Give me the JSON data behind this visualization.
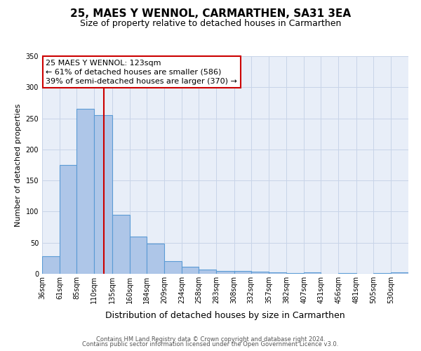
{
  "title": "25, MAES Y WENNOL, CARMARTHEN, SA31 3EA",
  "subtitle": "Size of property relative to detached houses in Carmarthen",
  "xlabel": "Distribution of detached houses by size in Carmarthen",
  "ylabel": "Number of detached properties",
  "bar_labels": [
    "36sqm",
    "61sqm",
    "85sqm",
    "110sqm",
    "135sqm",
    "160sqm",
    "184sqm",
    "209sqm",
    "234sqm",
    "258sqm",
    "283sqm",
    "308sqm",
    "332sqm",
    "357sqm",
    "382sqm",
    "407sqm",
    "431sqm",
    "456sqm",
    "481sqm",
    "505sqm",
    "530sqm"
  ],
  "bar_values": [
    28,
    175,
    265,
    255,
    95,
    60,
    48,
    20,
    11,
    7,
    4,
    5,
    3,
    2,
    1,
    2,
    0,
    1,
    0,
    1,
    2
  ],
  "bar_color": "#aec6e8",
  "bar_edge_color": "#5b9bd5",
  "property_line_x": 123,
  "property_line_label": "25 MAES Y WENNOL: 123sqm",
  "annotation_line1": "← 61% of detached houses are smaller (586)",
  "annotation_line2": "39% of semi-detached houses are larger (370) →",
  "annotation_box_color": "#ffffff",
  "annotation_box_edge_color": "#cc0000",
  "vline_color": "#cc0000",
  "ylim": [
    0,
    350
  ],
  "yticks": [
    0,
    50,
    100,
    150,
    200,
    250,
    300,
    350
  ],
  "footer_line1": "Contains HM Land Registry data © Crown copyright and database right 2024.",
  "footer_line2": "Contains public sector information licensed under the Open Government Licence v3.0.",
  "bin_edges": [
    36,
    61,
    85,
    110,
    135,
    160,
    184,
    209,
    234,
    258,
    283,
    308,
    332,
    357,
    382,
    407,
    431,
    456,
    481,
    505,
    530,
    555
  ],
  "bg_color": "#e8eef8",
  "grid_color": "#c8d4e8",
  "title_fontsize": 11,
  "subtitle_fontsize": 9,
  "ylabel_fontsize": 8,
  "xlabel_fontsize": 9,
  "tick_fontsize": 7,
  "footer_fontsize": 6,
  "annot_fontsize": 8
}
